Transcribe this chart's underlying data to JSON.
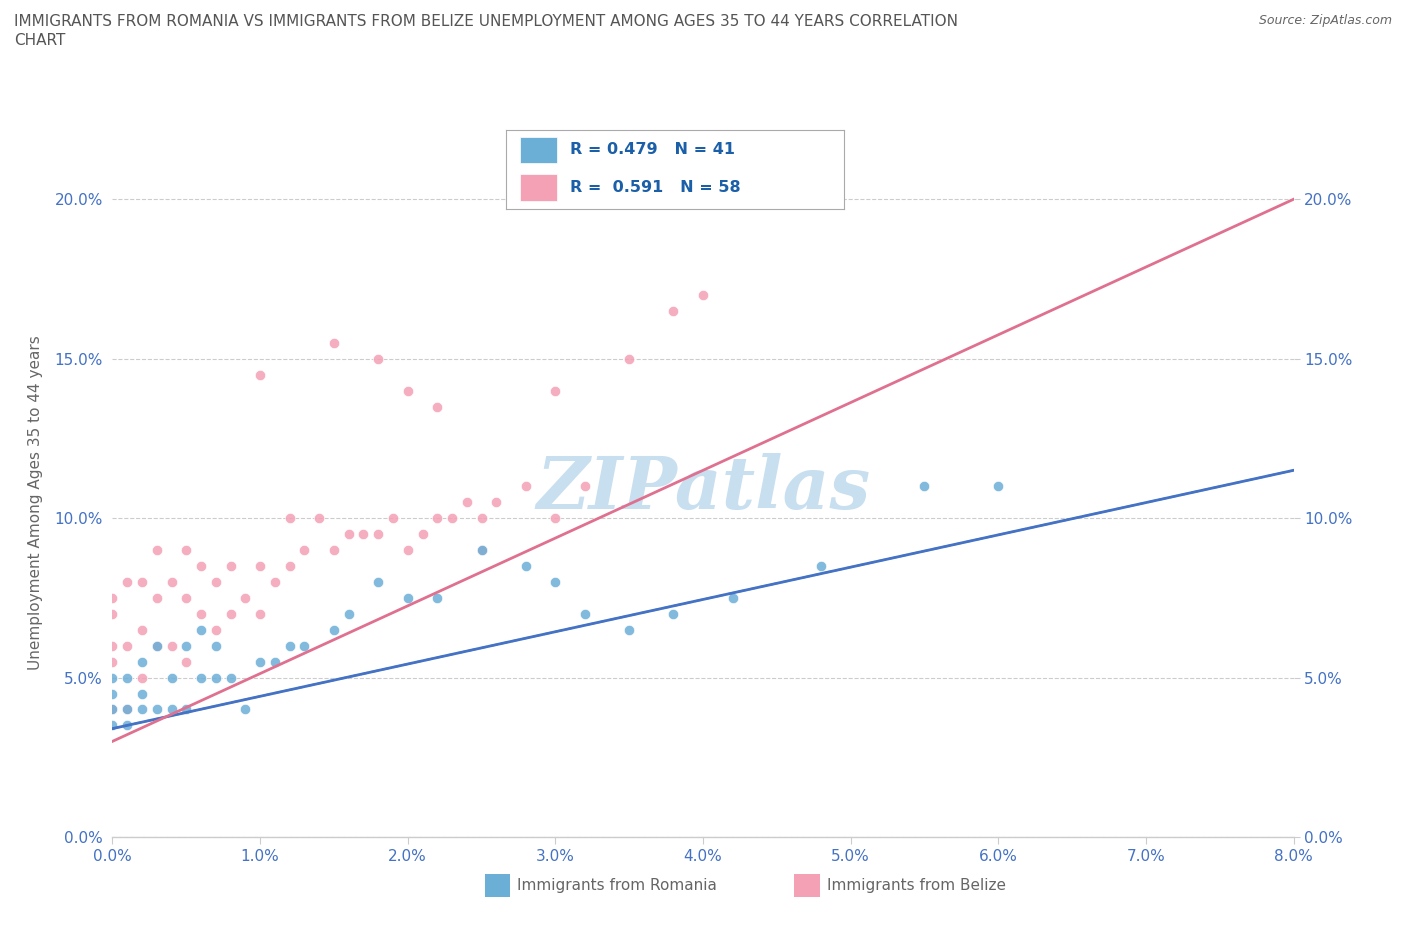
{
  "title_line1": "IMMIGRANTS FROM ROMANIA VS IMMIGRANTS FROM BELIZE UNEMPLOYMENT AMONG AGES 35 TO 44 YEARS CORRELATION",
  "title_line2": "CHART",
  "source": "Source: ZipAtlas.com",
  "ylabel": "Unemployment Among Ages 35 to 44 years",
  "xlim": [
    0.0,
    0.08
  ],
  "ylim": [
    0.0,
    0.21
  ],
  "xticks": [
    0.0,
    0.01,
    0.02,
    0.03,
    0.04,
    0.05,
    0.06,
    0.07,
    0.08
  ],
  "yticks": [
    0.0,
    0.05,
    0.1,
    0.15,
    0.2
  ],
  "romania_color": "#6baed6",
  "belize_color": "#f4a0b5",
  "romania_line_color": "#4472c4",
  "belize_line_color": "#e07090",
  "romania_R": 0.479,
  "romania_N": 41,
  "belize_R": 0.591,
  "belize_N": 58,
  "background_color": "#ffffff",
  "grid_color": "#cccccc",
  "title_color": "#555555",
  "axis_label_color": "#666666",
  "tick_label_color": "#4472c4",
  "legend_text_color": "#1a5fa8",
  "watermark": "ZIPatlas",
  "watermark_color": "#c8dff0",
  "romania_x": [
    0.0,
    0.0,
    0.0,
    0.0,
    0.001,
    0.001,
    0.001,
    0.002,
    0.002,
    0.002,
    0.003,
    0.003,
    0.004,
    0.004,
    0.005,
    0.005,
    0.006,
    0.006,
    0.007,
    0.007,
    0.008,
    0.009,
    0.01,
    0.011,
    0.012,
    0.013,
    0.015,
    0.016,
    0.018,
    0.02,
    0.022,
    0.025,
    0.028,
    0.03,
    0.032,
    0.035,
    0.038,
    0.042,
    0.048,
    0.055,
    0.06
  ],
  "romania_y": [
    0.035,
    0.04,
    0.045,
    0.05,
    0.035,
    0.04,
    0.05,
    0.04,
    0.045,
    0.055,
    0.04,
    0.06,
    0.04,
    0.05,
    0.04,
    0.06,
    0.05,
    0.065,
    0.05,
    0.06,
    0.05,
    0.04,
    0.055,
    0.055,
    0.06,
    0.06,
    0.065,
    0.07,
    0.08,
    0.075,
    0.075,
    0.09,
    0.085,
    0.08,
    0.07,
    0.065,
    0.07,
    0.075,
    0.085,
    0.11,
    0.11
  ],
  "belize_x": [
    0.0,
    0.0,
    0.0,
    0.0,
    0.0,
    0.001,
    0.001,
    0.001,
    0.002,
    0.002,
    0.002,
    0.003,
    0.003,
    0.003,
    0.004,
    0.004,
    0.005,
    0.005,
    0.005,
    0.006,
    0.006,
    0.007,
    0.007,
    0.008,
    0.008,
    0.009,
    0.01,
    0.01,
    0.011,
    0.012,
    0.012,
    0.013,
    0.014,
    0.015,
    0.016,
    0.017,
    0.018,
    0.019,
    0.02,
    0.021,
    0.022,
    0.023,
    0.024,
    0.025,
    0.026,
    0.028,
    0.03,
    0.032,
    0.035,
    0.038,
    0.04,
    0.015,
    0.02,
    0.025,
    0.01,
    0.03,
    0.018,
    0.022
  ],
  "belize_y": [
    0.04,
    0.055,
    0.06,
    0.07,
    0.075,
    0.04,
    0.06,
    0.08,
    0.05,
    0.065,
    0.08,
    0.06,
    0.075,
    0.09,
    0.06,
    0.08,
    0.055,
    0.075,
    0.09,
    0.07,
    0.085,
    0.065,
    0.08,
    0.07,
    0.085,
    0.075,
    0.07,
    0.085,
    0.08,
    0.085,
    0.1,
    0.09,
    0.1,
    0.09,
    0.095,
    0.095,
    0.095,
    0.1,
    0.09,
    0.095,
    0.1,
    0.1,
    0.105,
    0.1,
    0.105,
    0.11,
    0.1,
    0.11,
    0.15,
    0.165,
    0.17,
    0.155,
    0.14,
    0.09,
    0.145,
    0.14,
    0.15,
    0.135
  ]
}
